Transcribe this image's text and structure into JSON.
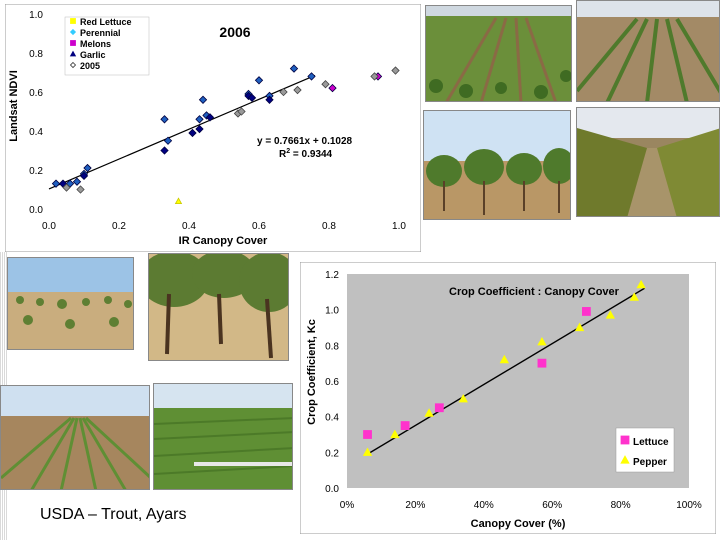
{
  "footer": {
    "credit": "USDA – Trout, Ayars"
  },
  "photos": [
    {
      "name": "photo-lettuce-field",
      "subject": "lettuce-field-icon"
    },
    {
      "name": "photo-cropland-rows",
      "subject": "cropland-rows-icon"
    },
    {
      "name": "photo-orchard-trellis",
      "subject": "orchard-trellis-icon"
    },
    {
      "name": "photo-vineyard-rows",
      "subject": "vineyard-icon"
    },
    {
      "name": "photo-young-orchard",
      "subject": "young-orchard-icon"
    },
    {
      "name": "photo-mature-orchard",
      "subject": "mature-orchard-icon"
    },
    {
      "name": "photo-young-crop-rows",
      "subject": "young-crop-rows-icon"
    },
    {
      "name": "photo-green-field",
      "subject": "green-field-icon"
    }
  ],
  "chart_data": [
    {
      "type": "scatter",
      "title": "2006",
      "xlabel": "IR Canopy Cover",
      "ylabel": "Landsat NDVI",
      "xlim": [
        0,
        1
      ],
      "ylim": [
        0,
        1
      ],
      "xticks": [
        "0.0",
        "0.2",
        "0.4",
        "0.6",
        "0.8",
        "1.0"
      ],
      "yticks": [
        "0.0",
        "0.2",
        "0.4",
        "0.6",
        "0.8",
        "1.0"
      ],
      "legend": [
        "Red Lettuce",
        "Perennial",
        "Melons",
        "Garlic",
        "2005"
      ],
      "legend_position": "top-left",
      "equation": "y = 0.7661x + 0.1028",
      "r2_label": "R",
      "r2_sup": "2",
      "r2_value": " = 0.9344",
      "trendline": {
        "slope": 0.7661,
        "intercept": 0.1028,
        "x_range": [
          0,
          0.76
        ]
      },
      "colors": {
        "Red Lettuce": "#ffff00",
        "Perennial": "#33ccff",
        "Melons": "#cc00cc",
        "Garlic": "#000080",
        "2005": "#666666"
      },
      "series": [
        {
          "name": "Perennial",
          "points": [
            [
              0.02,
              0.13
            ],
            [
              0.06,
              0.13
            ],
            [
              0.08,
              0.14
            ],
            [
              0.1,
              0.18
            ],
            [
              0.11,
              0.21
            ],
            [
              0.33,
              0.46
            ],
            [
              0.34,
              0.35
            ],
            [
              0.43,
              0.46
            ],
            [
              0.44,
              0.56
            ],
            [
              0.45,
              0.48
            ],
            [
              0.57,
              0.59
            ],
            [
              0.6,
              0.66
            ],
            [
              0.63,
              0.58
            ],
            [
              0.7,
              0.72
            ],
            [
              0.75,
              0.68
            ]
          ]
        },
        {
          "name": "Melons",
          "points": [
            [
              0.81,
              0.62
            ],
            [
              0.94,
              0.68
            ]
          ]
        },
        {
          "name": "Garlic",
          "points": [
            [
              0.04,
              0.13
            ],
            [
              0.1,
              0.17
            ],
            [
              0.33,
              0.3
            ],
            [
              0.41,
              0.39
            ],
            [
              0.43,
              0.41
            ],
            [
              0.46,
              0.47
            ],
            [
              0.57,
              0.58
            ],
            [
              0.58,
              0.57
            ],
            [
              0.63,
              0.56
            ]
          ]
        },
        {
          "name": "Red Lettuce",
          "points": [
            [
              0.37,
              0.04
            ]
          ]
        },
        {
          "name": "2005",
          "points": [
            [
              0.05,
              0.11
            ],
            [
              0.09,
              0.1
            ],
            [
              0.54,
              0.49
            ],
            [
              0.55,
              0.5
            ],
            [
              0.67,
              0.6
            ],
            [
              0.71,
              0.61
            ],
            [
              0.79,
              0.64
            ],
            [
              0.93,
              0.68
            ],
            [
              0.99,
              0.71
            ]
          ]
        }
      ]
    },
    {
      "type": "scatter",
      "title": "Crop Coefficient : Canopy Cover",
      "xlabel": "Canopy Cover (%)",
      "ylabel": "Crop Coefficient, Kc",
      "xlim": [
        0,
        100
      ],
      "ylim": [
        0,
        1.2
      ],
      "xticks": [
        "0%",
        "20%",
        "40%",
        "60%",
        "80%",
        "100%"
      ],
      "yticks": [
        "0.0",
        "0.2",
        "0.4",
        "0.6",
        "0.8",
        "1.0",
        "1.2"
      ],
      "legend": [
        "Lettuce",
        "Pepper"
      ],
      "legend_position": "bottom-right",
      "colors": {
        "Lettuce": "#ff33cc",
        "Pepper": "#ffff00"
      },
      "trendline": {
        "x": [
          6,
          87
        ],
        "y": [
          0.19,
          1.12
        ]
      },
      "series": [
        {
          "name": "Lettuce",
          "points": [
            [
              6,
              0.3
            ],
            [
              17,
              0.35
            ],
            [
              27,
              0.45
            ],
            [
              57,
              0.7
            ],
            [
              70,
              0.99
            ]
          ]
        },
        {
          "name": "Pepper",
          "points": [
            [
              6,
              0.2
            ],
            [
              14,
              0.3
            ],
            [
              24,
              0.42
            ],
            [
              34,
              0.5
            ],
            [
              46,
              0.72
            ],
            [
              57,
              0.82
            ],
            [
              68,
              0.9
            ],
            [
              77,
              0.97
            ],
            [
              84,
              1.07
            ],
            [
              86,
              1.14
            ]
          ]
        }
      ]
    }
  ]
}
